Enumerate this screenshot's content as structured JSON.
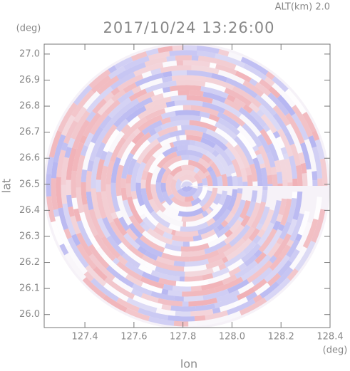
{
  "chart_data": {
    "type": "ppi",
    "title": "2017/10/24 13:26:00",
    "subtitle": "ALT(km) 2.0",
    "x_label": "lon",
    "y_label": "lat",
    "x_unit": "(deg)",
    "y_unit": "(deg)",
    "xlim": [
      127.234,
      128.4
    ],
    "ylim": [
      25.95,
      27.038
    ],
    "xticks": [
      127.4,
      127.6,
      127.8,
      {
        "value": 128.0,
        "label": "128.0"
      },
      128.2,
      128.4
    ],
    "yticks": [
      {
        "value": 26.0,
        "label": "26.0"
      },
      26.1,
      26.2,
      26.3,
      26.4,
      26.5,
      26.6,
      26.7,
      26.8,
      26.9,
      {
        "value": 27.0,
        "label": "27.0"
      }
    ]
  }
}
